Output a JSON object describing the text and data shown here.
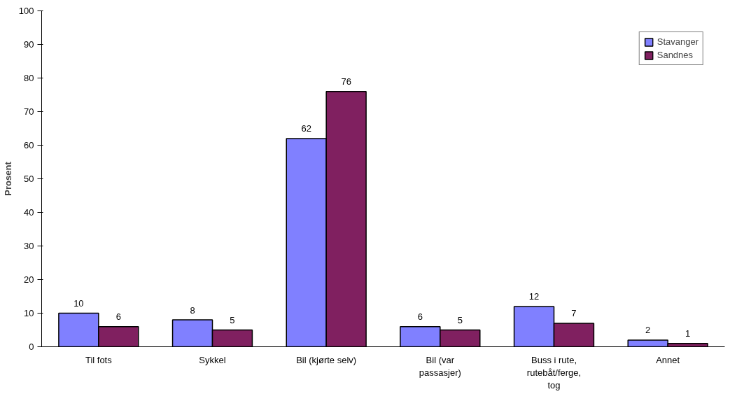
{
  "chart_data": {
    "type": "bar",
    "ylabel": "Prosent",
    "categories": [
      "Til fots",
      "Sykkel",
      "Bil (kjørte selv)",
      "Bil (var passasjer)",
      "Buss i rute, rutebåt/ferge, tog",
      "Annet"
    ],
    "series": [
      {
        "name": "Stavanger",
        "color": "#8080ff",
        "values": [
          10,
          8,
          62,
          6,
          12,
          2
        ]
      },
      {
        "name": "Sandnes",
        "color": "#802060",
        "values": [
          6,
          5,
          76,
          5,
          7,
          1
        ]
      }
    ],
    "ylim": [
      0,
      100
    ],
    "yticks": [
      0,
      10,
      20,
      30,
      40,
      50,
      60,
      70,
      80,
      90,
      100
    ],
    "grid": false,
    "legend": "top right",
    "data_labels": true
  }
}
